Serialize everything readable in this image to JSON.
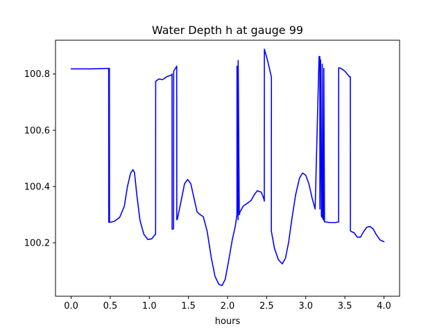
{
  "chart_data": {
    "type": "line",
    "title": "Water Depth h at gauge 99",
    "xlabel": "hours",
    "ylabel": "",
    "xlim": [
      -0.2,
      4.2
    ],
    "ylim": [
      100.01,
      100.92
    ],
    "xticks": [
      0.0,
      0.5,
      1.0,
      1.5,
      2.0,
      2.5,
      3.0,
      3.5,
      4.0
    ],
    "xtick_labels": [
      "0.0",
      "0.5",
      "1.0",
      "1.5",
      "2.0",
      "2.5",
      "3.0",
      "3.5",
      "4.0"
    ],
    "yticks": [
      100.2,
      100.4,
      100.6,
      100.8
    ],
    "ytick_labels": [
      "100.2",
      "100.4",
      "100.6",
      "100.8"
    ],
    "grid": false,
    "color": "#0000ff",
    "series": [
      {
        "x": [
          0.0,
          0.25,
          0.48,
          0.481,
          0.484,
          0.486,
          0.489,
          0.491,
          0.5,
          0.55,
          0.62,
          0.68,
          0.72,
          0.76,
          0.79,
          0.81,
          0.84,
          0.88,
          0.93,
          0.98,
          1.03,
          1.07,
          1.08,
          1.081,
          1.12,
          1.17,
          1.22,
          1.28,
          1.29,
          1.291,
          1.31,
          1.311,
          1.33,
          1.35,
          1.351,
          1.36,
          1.37,
          1.4,
          1.45,
          1.49,
          1.53,
          1.57,
          1.61,
          1.65,
          1.69,
          1.74,
          1.79,
          1.84,
          1.89,
          1.93,
          1.97,
          2.01,
          2.06,
          2.1,
          2.12,
          2.121,
          2.135,
          2.136,
          2.15,
          2.151,
          2.16,
          2.2,
          2.25,
          2.3,
          2.34,
          2.38,
          2.43,
          2.46,
          2.47,
          2.471,
          2.51,
          2.56,
          2.561,
          2.56,
          2.561,
          2.6,
          2.65,
          2.7,
          2.74,
          2.78,
          2.82,
          2.87,
          2.92,
          2.96,
          3.0,
          3.04,
          3.08,
          3.12,
          3.17,
          3.18,
          3.181,
          3.19,
          3.2,
          3.21,
          3.211,
          3.22,
          3.23,
          3.231,
          3.24,
          3.3,
          3.38,
          3.42,
          3.421,
          3.45,
          3.5,
          3.56,
          3.57,
          3.571,
          3.62,
          3.66,
          3.7,
          3.74,
          3.78,
          3.82,
          3.86,
          3.9,
          3.95,
          4.0
        ],
        "y": [
          100.818,
          100.818,
          100.82,
          100.273,
          100.273,
          100.82,
          100.82,
          100.273,
          100.273,
          100.276,
          100.29,
          100.33,
          100.4,
          100.447,
          100.46,
          100.45,
          100.37,
          100.28,
          100.23,
          100.212,
          100.214,
          100.228,
          100.23,
          100.774,
          100.782,
          100.78,
          100.79,
          100.796,
          100.8,
          100.248,
          100.25,
          100.81,
          100.818,
          100.828,
          100.282,
          100.285,
          100.3,
          100.34,
          100.41,
          100.425,
          100.41,
          100.36,
          100.31,
          100.3,
          100.293,
          100.24,
          100.15,
          100.08,
          100.052,
          100.048,
          100.07,
          100.13,
          100.21,
          100.26,
          100.3,
          100.828,
          100.282,
          100.848,
          100.31,
          100.3,
          100.31,
          100.33,
          100.34,
          100.35,
          100.37,
          100.385,
          100.38,
          100.36,
          100.348,
          100.888,
          100.85,
          100.79,
          100.785,
          100.24,
          100.24,
          100.18,
          100.14,
          100.125,
          100.145,
          100.2,
          100.28,
          100.37,
          100.43,
          100.448,
          100.44,
          100.41,
          100.36,
          100.32,
          100.862,
          100.862,
          100.32,
          100.85,
          100.295,
          100.29,
          100.835,
          100.285,
          100.28,
          100.82,
          100.275,
          100.272,
          100.272,
          100.274,
          100.822,
          100.82,
          100.81,
          100.79,
          100.79,
          100.242,
          100.235,
          100.22,
          100.22,
          100.24,
          100.255,
          100.258,
          100.25,
          100.23,
          100.21,
          100.204
        ]
      }
    ]
  }
}
